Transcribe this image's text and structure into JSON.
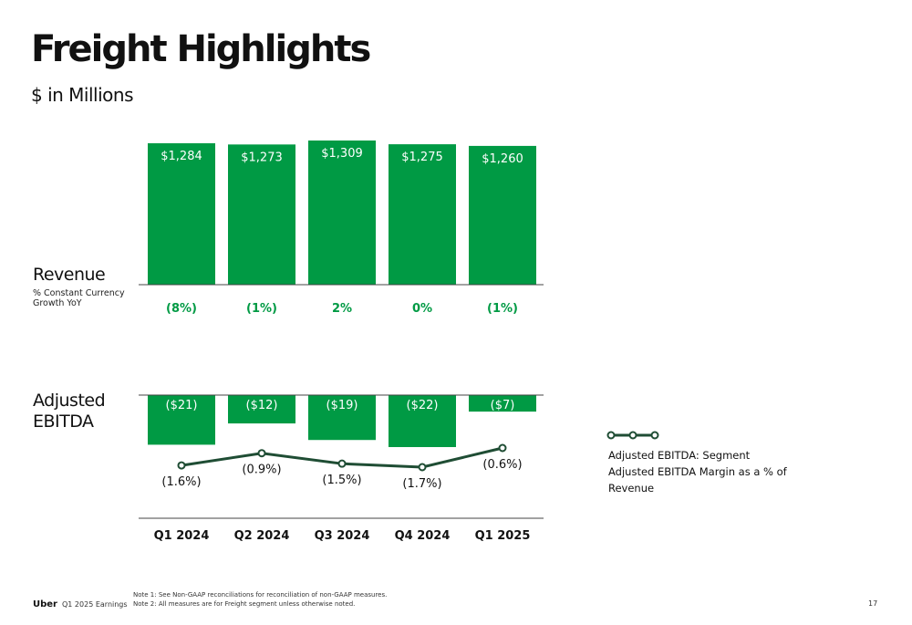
{
  "page": {
    "title": "Freight Highlights",
    "subtitle": "$ in Millions",
    "revenue_label": "Revenue",
    "growth_caption": "% Constant Currency Growth YoY",
    "ebitda_label": "Adjusted EBITDA",
    "legend_text": "Adjusted EBITDA: Segment Adjusted EBITDA Margin as a % of Revenue",
    "footer_brand": "Uber",
    "footer_deck": "Q1 2025 Earnings",
    "note_1": "Note 1: See Non-GAAP reconciliations for reconciliation of non-GAAP measures.",
    "note_2": "Note 2: All measures are for Freight segment unless otherwise noted.",
    "page_number": "17"
  },
  "colors": {
    "bar": "#009a44",
    "growth_text": "#009a44",
    "margin_line": "#1f4d34",
    "axis": "#444444"
  },
  "chart_data": [
    {
      "type": "bar",
      "categories": [
        "Q1 2024",
        "Q2 2024",
        "Q3 2024",
        "Q4 2024",
        "Q1 2025"
      ],
      "series": [
        {
          "name": "Revenue",
          "values": [
            1284,
            1273,
            1309,
            1275,
            1260
          ],
          "labels": [
            "$1,284",
            "$1,273",
            "$1,309",
            "$1,275",
            "$1,260"
          ]
        }
      ],
      "growth_yoy_pct": [
        -8,
        -1,
        2,
        0,
        -1
      ],
      "growth_labels": [
        "(8%)",
        "(1%)",
        "2%",
        "0%",
        "(1%)"
      ]
    },
    {
      "type": "bar",
      "categories": [
        "Q1 2024",
        "Q2 2024",
        "Q3 2024",
        "Q4 2024",
        "Q1 2025"
      ],
      "series": [
        {
          "name": "Adjusted EBITDA",
          "values": [
            -21,
            -12,
            -19,
            -22,
            -7
          ],
          "labels": [
            "($21)",
            "($12)",
            "($19)",
            "($22)",
            "($7)"
          ]
        }
      ],
      "xlabel": "",
      "ylabel": ""
    },
    {
      "type": "line",
      "categories": [
        "Q1 2024",
        "Q2 2024",
        "Q3 2024",
        "Q4 2024",
        "Q1 2025"
      ],
      "series": [
        {
          "name": "Adjusted EBITDA: Segment Adjusted EBITDA Margin as a % of Revenue",
          "values": [
            -1.6,
            -0.9,
            -1.5,
            -1.7,
            -0.6
          ],
          "labels": [
            "(1.6%)",
            "(0.9%)",
            "(1.5%)",
            "(1.7%)",
            "(0.6%)"
          ]
        }
      ]
    }
  ]
}
